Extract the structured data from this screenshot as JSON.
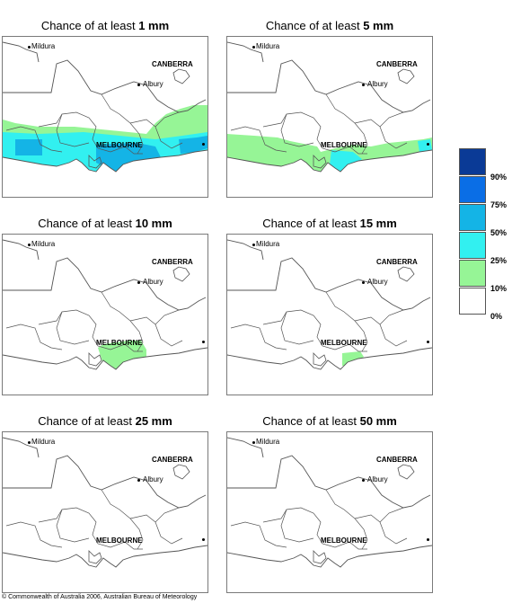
{
  "title_prefix": "Chance of at least",
  "panels": [
    {
      "threshold": "1 mm",
      "layers": [
        "green",
        "cyan",
        "blue"
      ]
    },
    {
      "threshold": "5 mm",
      "layers": [
        "green5",
        "cyan5"
      ]
    },
    {
      "threshold": "10 mm",
      "layers": [
        "green10"
      ]
    },
    {
      "threshold": "15 mm",
      "layers": [
        "green15"
      ]
    },
    {
      "threshold": "25 mm",
      "layers": []
    },
    {
      "threshold": "50 mm",
      "layers": []
    }
  ],
  "places": {
    "mildura": "Mildura",
    "canberra": "CANBERRA",
    "albury": "Albury",
    "melbourne": "MELBOURNE"
  },
  "legend": {
    "colors": [
      "#0a3a96",
      "#0a6ee6",
      "#14b4e6",
      "#32f0f0",
      "#96f596",
      "#ffffff"
    ],
    "labels": [
      "90%",
      "75%",
      "50%",
      "25%",
      "10%",
      "0%"
    ]
  },
  "copyright": "© Commonwealth of Australia 2006, Australian Bureau of Meteorology"
}
